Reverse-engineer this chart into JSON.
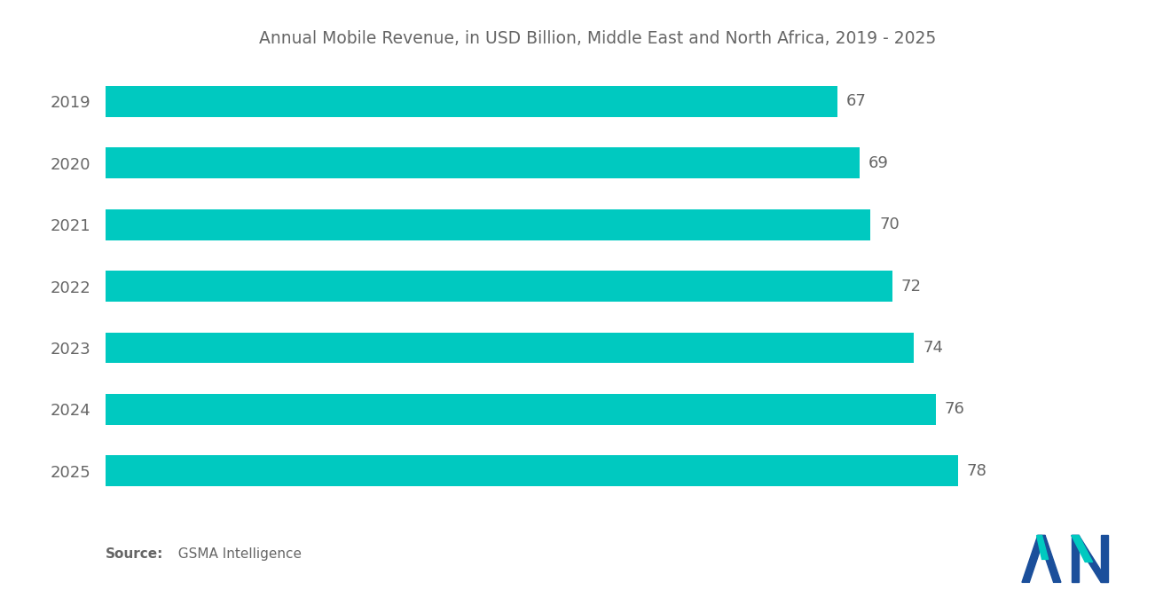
{
  "title": "Annual Mobile Revenue, in USD Billion, Middle East and North Africa, 2019 - 2025",
  "years": [
    "2019",
    "2020",
    "2021",
    "2022",
    "2023",
    "2024",
    "2025"
  ],
  "values": [
    67,
    69,
    70,
    72,
    74,
    76,
    78
  ],
  "bar_color": "#00C9C0",
  "background_color": "#ffffff",
  "title_fontsize": 13.5,
  "label_fontsize": 13,
  "value_fontsize": 13,
  "source_bold": "Source:",
  "source_rest": "  GSMA Intelligence",
  "xlim": [
    0,
    90
  ],
  "bar_height": 0.5
}
